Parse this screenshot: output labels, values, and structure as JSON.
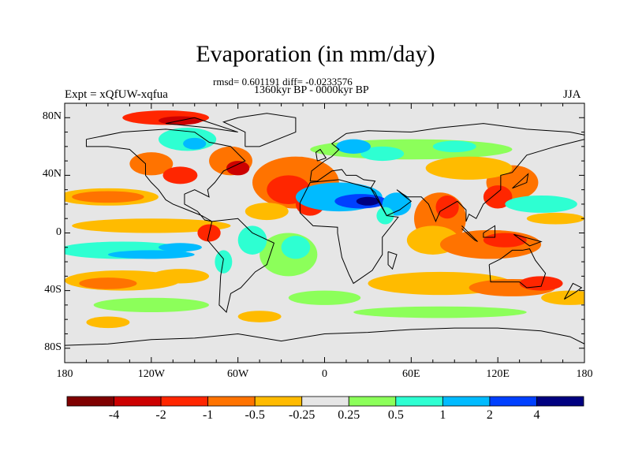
{
  "title": "Evaporation (in mm/day)",
  "stats": "rmsd= 0.601191 diff= -0.0233576",
  "period": "1360kyr BP - 0000kyr BP",
  "experiment": "Expt = xQfUW-xqfua",
  "season": "JJA",
  "map": {
    "projection": "cylindrical equidistant",
    "lon_range": [
      -180,
      180
    ],
    "lat_range": [
      -90,
      90
    ],
    "x_tick_labels": [
      "180",
      "120W",
      "60W",
      "0",
      "60E",
      "120E",
      "180"
    ],
    "x_tick_values": [
      -180,
      -120,
      -60,
      0,
      60,
      120,
      180
    ],
    "y_tick_labels": [
      "80N",
      "40N",
      "0",
      "40S",
      "80S"
    ],
    "y_tick_values": [
      80,
      40,
      0,
      -40,
      -80
    ],
    "background_color": "#e6e6e6"
  },
  "colorbar": {
    "labels": [
      "-4",
      "-2",
      "-1",
      "-0.5",
      "-0.25",
      "0.25",
      "0.5",
      "1",
      "2",
      "4"
    ],
    "colors": [
      "#7f0000",
      "#cc0000",
      "#ff2600",
      "#ff7300",
      "#ffbb00",
      "#e6e6e6",
      "#8cff5a",
      "#2effd2",
      "#00bbff",
      "#0040ff",
      "#000080"
    ]
  }
}
